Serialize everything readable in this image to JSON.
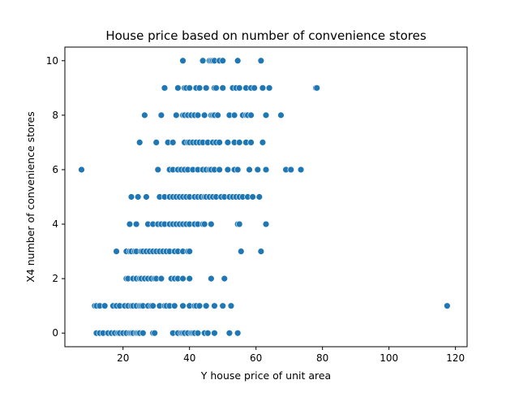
{
  "chart_data": {
    "type": "scatter",
    "title": "House price based on number of convenience stores",
    "xlabel": "Y house price of unit area",
    "ylabel": "X4 number of convenience stores",
    "xlim": [
      2.5,
      123.5
    ],
    "ylim": [
      -0.5,
      10.5
    ],
    "xticks": [
      20,
      40,
      60,
      80,
      100,
      120
    ],
    "yticks": [
      0,
      2,
      4,
      6,
      8,
      10
    ],
    "xtick_labels": [
      "20",
      "40",
      "60",
      "80",
      "100",
      "120"
    ],
    "ytick_labels": [
      "0",
      "2",
      "4",
      "6",
      "8",
      "10"
    ],
    "grid": false,
    "legend": "none",
    "point_color": "#1f77b4",
    "points": [
      [
        38.0,
        10
      ],
      [
        44.0,
        10
      ],
      [
        46.0,
        10
      ],
      [
        46.5,
        10
      ],
      [
        47.0,
        10
      ],
      [
        47.5,
        10
      ],
      [
        49.0,
        10
      ],
      [
        50.0,
        10
      ],
      [
        54.5,
        10
      ],
      [
        61.5,
        10
      ],
      [
        32.5,
        9
      ],
      [
        36.5,
        9
      ],
      [
        38.5,
        9
      ],
      [
        39.0,
        9
      ],
      [
        40.0,
        9
      ],
      [
        42.0,
        9
      ],
      [
        43.0,
        9
      ],
      [
        45.0,
        9
      ],
      [
        47.5,
        9
      ],
      [
        48.0,
        9
      ],
      [
        50.0,
        9
      ],
      [
        53.0,
        9
      ],
      [
        54.0,
        9
      ],
      [
        55.0,
        9
      ],
      [
        57.0,
        9
      ],
      [
        58.5,
        9
      ],
      [
        59.5,
        9
      ],
      [
        62.0,
        9
      ],
      [
        64.0,
        9
      ],
      [
        78.0,
        9
      ],
      [
        78.3,
        9
      ],
      [
        26.5,
        8
      ],
      [
        31.5,
        8
      ],
      [
        36.0,
        8
      ],
      [
        38.0,
        8
      ],
      [
        38.5,
        8
      ],
      [
        39.5,
        8
      ],
      [
        40.5,
        8
      ],
      [
        41.5,
        8
      ],
      [
        42.5,
        8
      ],
      [
        44.5,
        8
      ],
      [
        46.5,
        8
      ],
      [
        47.0,
        8
      ],
      [
        47.5,
        8
      ],
      [
        48.5,
        8
      ],
      [
        52.0,
        8
      ],
      [
        53.5,
        8
      ],
      [
        56.0,
        8
      ],
      [
        57.0,
        8
      ],
      [
        57.5,
        8
      ],
      [
        58.5,
        8
      ],
      [
        63.0,
        8
      ],
      [
        67.5,
        8
      ],
      [
        25.0,
        7
      ],
      [
        30.0,
        7
      ],
      [
        33.5,
        7
      ],
      [
        35.0,
        7
      ],
      [
        38.5,
        7
      ],
      [
        39.5,
        7
      ],
      [
        40.0,
        7
      ],
      [
        41.0,
        7
      ],
      [
        42.0,
        7
      ],
      [
        43.0,
        7
      ],
      [
        44.0,
        7
      ],
      [
        45.5,
        7
      ],
      [
        47.0,
        7
      ],
      [
        48.0,
        7
      ],
      [
        49.0,
        7
      ],
      [
        51.5,
        7
      ],
      [
        53.5,
        7
      ],
      [
        55.0,
        7
      ],
      [
        57.0,
        7
      ],
      [
        58.5,
        7
      ],
      [
        62.0,
        7
      ],
      [
        7.5,
        6
      ],
      [
        30.5,
        6
      ],
      [
        34.0,
        6
      ],
      [
        35.0,
        6
      ],
      [
        36.5,
        6
      ],
      [
        37.5,
        6
      ],
      [
        38.5,
        6
      ],
      [
        39.5,
        6
      ],
      [
        41.0,
        6
      ],
      [
        42.5,
        6
      ],
      [
        44.0,
        6
      ],
      [
        45.0,
        6
      ],
      [
        46.0,
        6
      ],
      [
        46.5,
        6
      ],
      [
        47.5,
        6
      ],
      [
        49.0,
        6
      ],
      [
        51.5,
        6
      ],
      [
        53.5,
        6
      ],
      [
        54.5,
        6
      ],
      [
        58.0,
        6
      ],
      [
        60.5,
        6
      ],
      [
        63.0,
        6
      ],
      [
        69.0,
        6
      ],
      [
        70.5,
        6
      ],
      [
        73.5,
        6
      ],
      [
        22.5,
        5
      ],
      [
        24.5,
        5
      ],
      [
        27.0,
        5
      ],
      [
        31.0,
        5
      ],
      [
        32.5,
        5
      ],
      [
        34.0,
        5
      ],
      [
        35.0,
        5
      ],
      [
        36.0,
        5
      ],
      [
        37.0,
        5
      ],
      [
        38.0,
        5
      ],
      [
        39.0,
        5
      ],
      [
        40.0,
        5
      ],
      [
        41.5,
        5
      ],
      [
        42.5,
        5
      ],
      [
        43.5,
        5
      ],
      [
        44.5,
        5
      ],
      [
        45.0,
        5
      ],
      [
        46.0,
        5
      ],
      [
        47.0,
        5
      ],
      [
        48.0,
        5
      ],
      [
        49.5,
        5
      ],
      [
        50.5,
        5
      ],
      [
        52.0,
        5
      ],
      [
        53.0,
        5
      ],
      [
        54.0,
        5
      ],
      [
        55.0,
        5
      ],
      [
        56.0,
        5
      ],
      [
        57.5,
        5
      ],
      [
        59.0,
        5
      ],
      [
        61.0,
        5
      ],
      [
        22.0,
        4
      ],
      [
        24.0,
        4
      ],
      [
        27.5,
        4
      ],
      [
        29.0,
        4
      ],
      [
        30.5,
        4
      ],
      [
        31.5,
        4
      ],
      [
        32.5,
        4
      ],
      [
        34.0,
        4
      ],
      [
        35.0,
        4
      ],
      [
        36.0,
        4
      ],
      [
        37.0,
        4
      ],
      [
        38.0,
        4
      ],
      [
        39.0,
        4
      ],
      [
        40.0,
        4
      ],
      [
        41.5,
        4
      ],
      [
        42.5,
        4
      ],
      [
        44.0,
        4
      ],
      [
        44.5,
        4
      ],
      [
        46.5,
        4
      ],
      [
        54.5,
        4
      ],
      [
        55.0,
        4
      ],
      [
        63.0,
        4
      ],
      [
        18.0,
        3
      ],
      [
        21.0,
        3
      ],
      [
        22.0,
        3
      ],
      [
        22.5,
        3
      ],
      [
        23.5,
        3
      ],
      [
        24.0,
        3
      ],
      [
        25.5,
        3
      ],
      [
        26.0,
        3
      ],
      [
        27.0,
        3
      ],
      [
        28.0,
        3
      ],
      [
        29.0,
        3
      ],
      [
        30.0,
        3
      ],
      [
        31.0,
        3
      ],
      [
        32.0,
        3
      ],
      [
        33.0,
        3
      ],
      [
        34.0,
        3
      ],
      [
        35.5,
        3
      ],
      [
        36.5,
        3
      ],
      [
        38.0,
        3
      ],
      [
        39.5,
        3
      ],
      [
        40.0,
        3
      ],
      [
        55.5,
        3
      ],
      [
        61.5,
        3
      ],
      [
        21.0,
        2
      ],
      [
        21.5,
        2
      ],
      [
        23.0,
        2
      ],
      [
        24.0,
        2
      ],
      [
        25.0,
        2
      ],
      [
        25.5,
        2
      ],
      [
        26.5,
        2
      ],
      [
        27.5,
        2
      ],
      [
        28.5,
        2
      ],
      [
        29.5,
        2
      ],
      [
        30.0,
        2
      ],
      [
        31.5,
        2
      ],
      [
        34.5,
        2
      ],
      [
        35.5,
        2
      ],
      [
        36.5,
        2
      ],
      [
        38.0,
        2
      ],
      [
        40.0,
        2
      ],
      [
        46.5,
        2
      ],
      [
        50.5,
        2
      ],
      [
        11.5,
        1
      ],
      [
        12.0,
        1
      ],
      [
        13.0,
        1
      ],
      [
        14.5,
        1
      ],
      [
        17.0,
        1
      ],
      [
        18.0,
        1
      ],
      [
        19.0,
        1
      ],
      [
        20.5,
        1
      ],
      [
        21.5,
        1
      ],
      [
        22.5,
        1
      ],
      [
        23.0,
        1
      ],
      [
        24.0,
        1
      ],
      [
        25.0,
        1
      ],
      [
        25.5,
        1
      ],
      [
        26.0,
        1
      ],
      [
        27.5,
        1
      ],
      [
        28.5,
        1
      ],
      [
        29.0,
        1
      ],
      [
        31.0,
        1
      ],
      [
        32.5,
        1
      ],
      [
        33.0,
        1
      ],
      [
        34.0,
        1
      ],
      [
        35.5,
        1
      ],
      [
        38.0,
        1
      ],
      [
        40.0,
        1
      ],
      [
        41.5,
        1
      ],
      [
        42.0,
        1
      ],
      [
        43.0,
        1
      ],
      [
        45.0,
        1
      ],
      [
        47.5,
        1
      ],
      [
        50.0,
        1
      ],
      [
        52.5,
        1
      ],
      [
        117.5,
        1
      ],
      [
        12.0,
        0
      ],
      [
        13.0,
        0
      ],
      [
        14.0,
        0
      ],
      [
        15.5,
        0
      ],
      [
        16.5,
        0
      ],
      [
        17.5,
        0
      ],
      [
        18.5,
        0
      ],
      [
        19.0,
        0
      ],
      [
        20.0,
        0
      ],
      [
        21.0,
        0
      ],
      [
        22.0,
        0
      ],
      [
        22.5,
        0
      ],
      [
        23.0,
        0
      ],
      [
        24.0,
        0
      ],
      [
        24.5,
        0
      ],
      [
        25.0,
        0
      ],
      [
        26.0,
        0
      ],
      [
        29.0,
        0
      ],
      [
        29.5,
        0
      ],
      [
        35.0,
        0
      ],
      [
        36.5,
        0
      ],
      [
        37.5,
        0
      ],
      [
        38.0,
        0
      ],
      [
        38.5,
        0
      ],
      [
        39.5,
        0
      ],
      [
        40.5,
        0
      ],
      [
        41.0,
        0
      ],
      [
        41.5,
        0
      ],
      [
        42.5,
        0
      ],
      [
        44.5,
        0
      ],
      [
        45.5,
        0
      ],
      [
        47.5,
        0
      ],
      [
        52.0,
        0
      ],
      [
        54.5,
        0
      ]
    ]
  }
}
